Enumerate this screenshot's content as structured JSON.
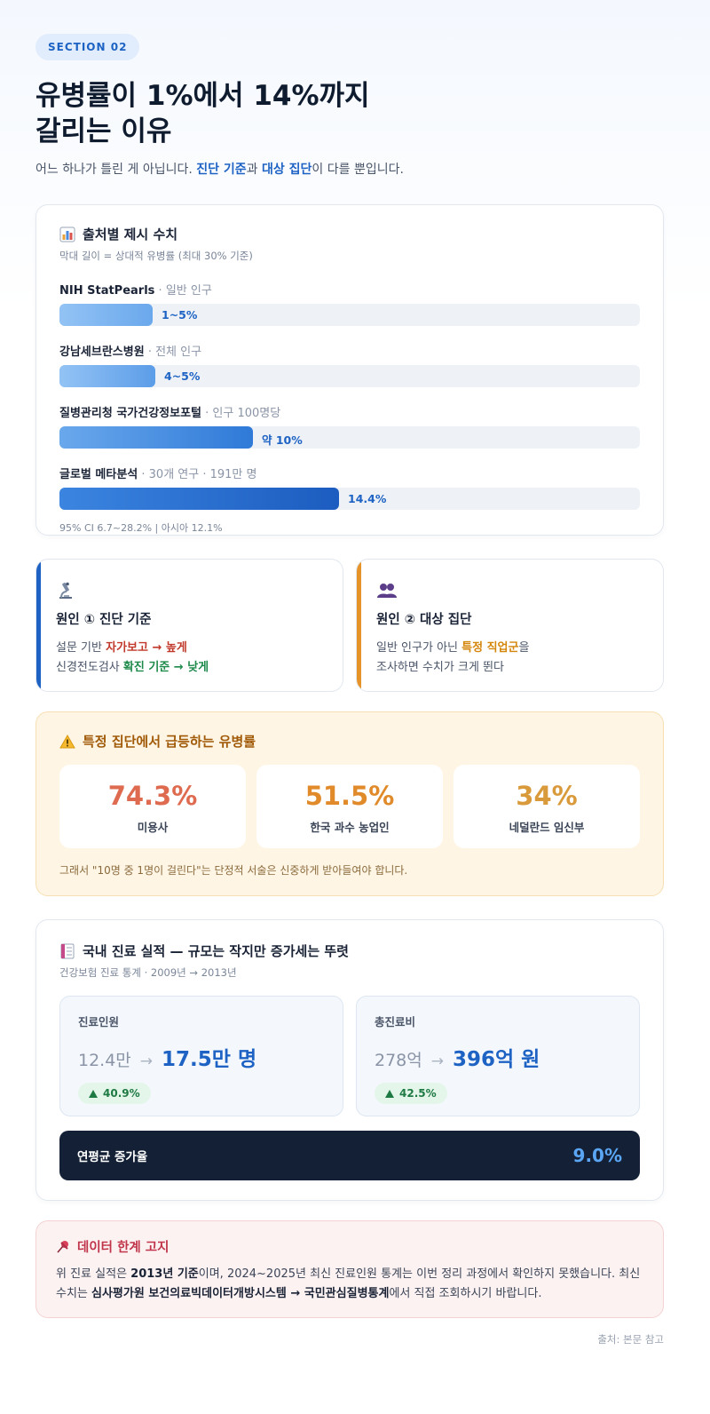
{
  "section_badge": "SECTION 02",
  "title_line1": "유병률이 1%에서 14%까지",
  "title_line2": "갈리는 이유",
  "lead": {
    "pre": "어느 하나가 틀린 게 아닙니다. ",
    "hl1": "진단 기준",
    "mid": "과 ",
    "hl2": "대상 집단",
    "post": "이 다를 뿐입니다."
  },
  "sources_card": {
    "title": "출처별 제시 수치",
    "subtitle": "막대 길이 = 상대적 유병률 (최대 30% 기준)",
    "bars": [
      {
        "name": "NIH StatPearls",
        "desc": " · 일반 인구",
        "value_label": "1~5%",
        "fill_pct": 16,
        "grad": [
          "#93c3f5",
          "#6aa8ec"
        ]
      },
      {
        "name": "강남세브란스병원",
        "desc": " · 전체 인구",
        "value_label": "4~5%",
        "fill_pct": 16.5,
        "grad": [
          "#93c3f5",
          "#5c9de8"
        ]
      },
      {
        "name": "질병관리청 국가건강정보포털",
        "desc": " · 인구 100명당",
        "value_label": "약 10%",
        "fill_pct": 33.3,
        "grad": [
          "#6aa8ec",
          "#2f7ad8"
        ]
      },
      {
        "name": "글로벌 메타분석",
        "desc": " · 30개 연구 · 191만 명",
        "value_label": "14.4%",
        "fill_pct": 48,
        "grad": [
          "#3b85e0",
          "#1c5cc0"
        ]
      }
    ],
    "footnote": "95% CI 6.7~28.2%  |  아시아 12.1%"
  },
  "causes": [
    {
      "icon": "microscope-icon",
      "title": "원인 ① 진단 기준",
      "line1_pre": "설문 기반 ",
      "line1_hl": "자가보고 → 높게",
      "line2_pre": "신경전도검사 ",
      "line2_hl": "확진 기준 → 낮게",
      "color": "#1e63c4"
    },
    {
      "icon": "people-icon",
      "title": "원인 ② 대상 집단",
      "line1_pre": "일반 인구가 아닌 ",
      "line1_hl": "특정 직업군",
      "line1_post": "을",
      "line2": "조사하면 수치가 크게 뛴다",
      "color": "#e6942a"
    }
  ],
  "warning": {
    "title": "특정 집단에서 급등하는 유병률",
    "stats": [
      {
        "value": "74.3%",
        "label": "미용사",
        "color": "#de6b4f"
      },
      {
        "value": "51.5%",
        "label": "한국 과수 농업인",
        "color": "#e08a2a"
      },
      {
        "value": "34%",
        "label": "네덜란드 임신부",
        "color": "#d99a3c"
      }
    ],
    "footer": "그래서 \"10명 중 1명이 걸린다\"는 단정적 서술은 신중하게 받아들여야 합니다."
  },
  "domestic": {
    "title": "국내 진료 실적 — 규모는 작지만 증가세는 뚜렷",
    "subtitle": "건강보험 진료 통계 · 2009년 → 2013년",
    "boxes": [
      {
        "label": "진료인원",
        "from": "12.4만",
        "arrow": "→",
        "to": "17.5만 명",
        "change": "40.9%"
      },
      {
        "label": "총진료비",
        "from": "278억",
        "arrow": "→",
        "to": "396억 원",
        "change": "42.5%"
      }
    ],
    "annual_label": "연평균 증가율",
    "annual_value": "9.0%"
  },
  "limit": {
    "title": "데이터 한계 고지",
    "p1_pre": "위 진료 실적은 ",
    "p1_b": "2013년 기준",
    "p1_post": "이며, 2024~2025년 최신 진료인원 통계는 이번 정리 과정에서 확인하지 못했습니다. 최신 수치는 ",
    "p2_b1": "심사평가원 보건의료빅데이터개방시스템 → 국민관심질병통계",
    "p2_post": "에서 직접 조회하시기 바랍니다."
  },
  "source": "출처: 본문 참고"
}
